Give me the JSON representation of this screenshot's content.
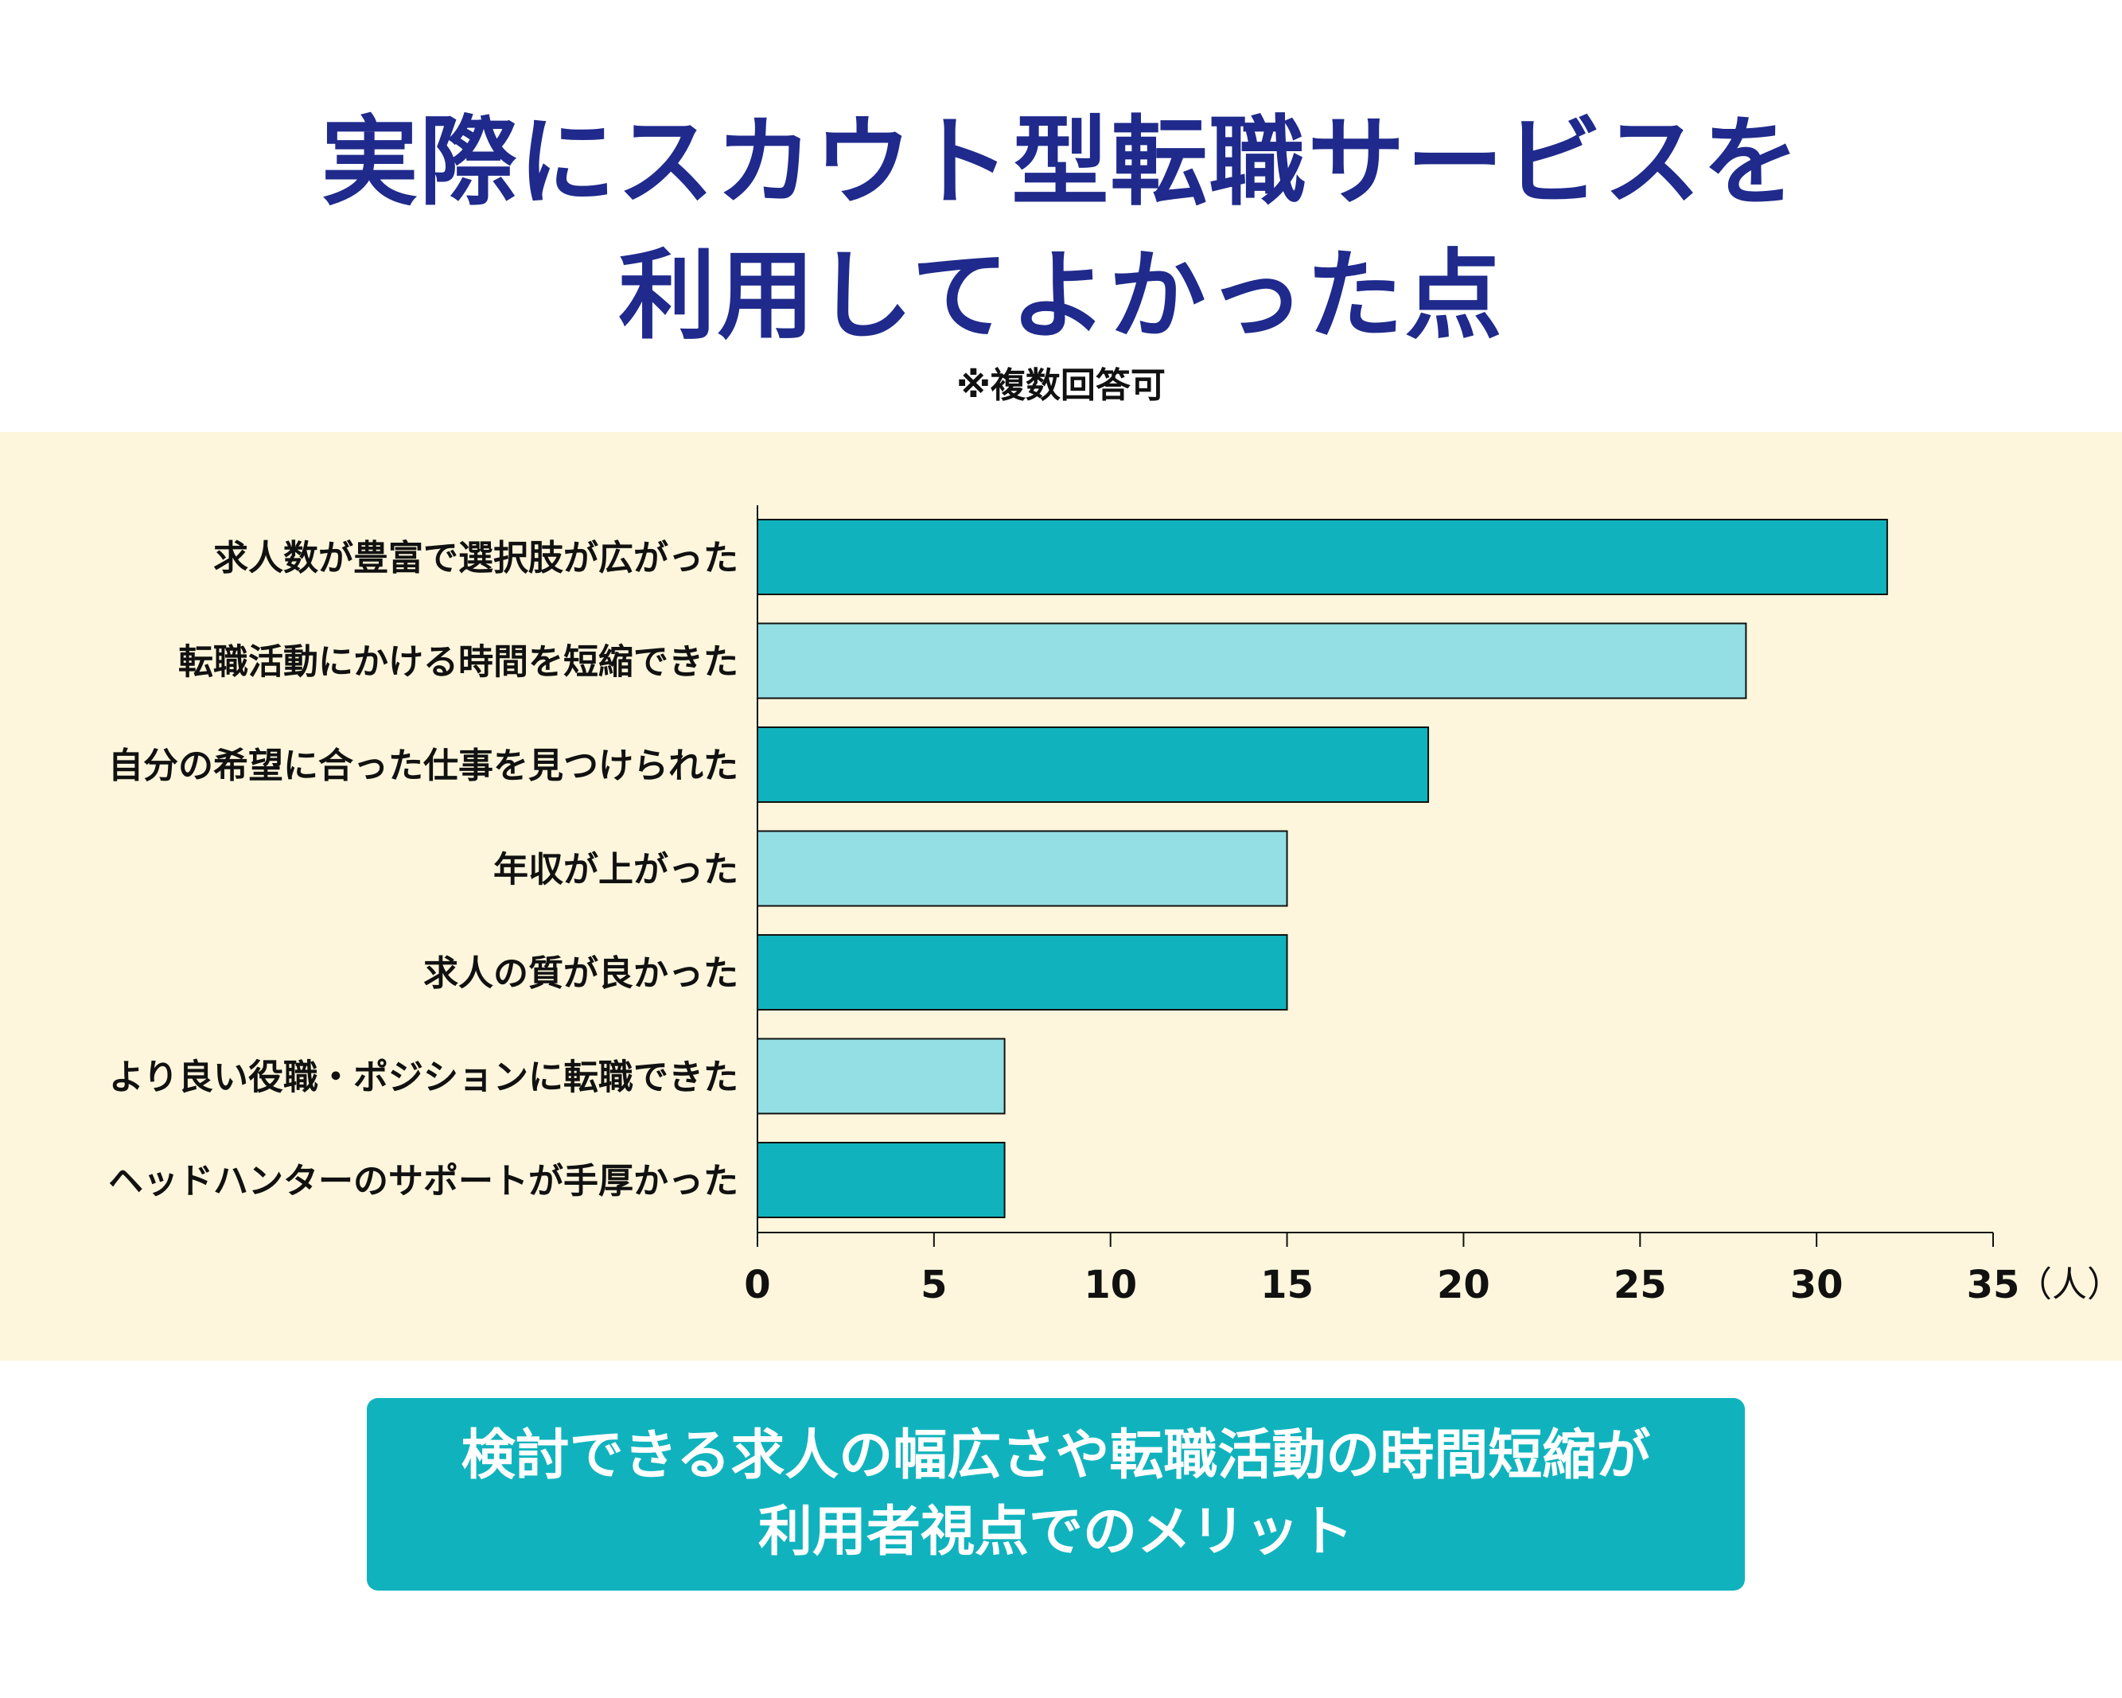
{
  "title": {
    "line1": "実際にスカウト型転職サービスを",
    "line2": "利用してよかった点"
  },
  "note": "※複数回答可",
  "summary": {
    "line1": "検討できる求人の幅広さや転職活動の時間短縮が",
    "line2": "利用者視点でのメリット"
  },
  "colors": {
    "title": "#1f2a8c",
    "panel_bg": "#fdf6dc",
    "bar_dark": "#10b3bd",
    "bar_light": "#93dfe4",
    "summary_bg": "#10b3bd"
  },
  "chart_data": {
    "type": "bar",
    "orientation": "horizontal",
    "categories": [
      "求人数が豊富で選択肢が広がった",
      "転職活動にかける時間を短縮できた",
      "自分の希望に合った仕事を見つけられた",
      "年収が上がった",
      "求人の質が良かった",
      "より良い役職・ポジションに転職できた",
      "ヘッドハンターのサポートが手厚かった"
    ],
    "values": [
      32,
      28,
      19,
      15,
      15,
      7,
      7
    ],
    "xlim": [
      0,
      35
    ],
    "xticks": [
      0,
      5,
      10,
      15,
      20,
      25,
      30,
      35
    ],
    "unit_label": "（人）",
    "grid": false
  }
}
